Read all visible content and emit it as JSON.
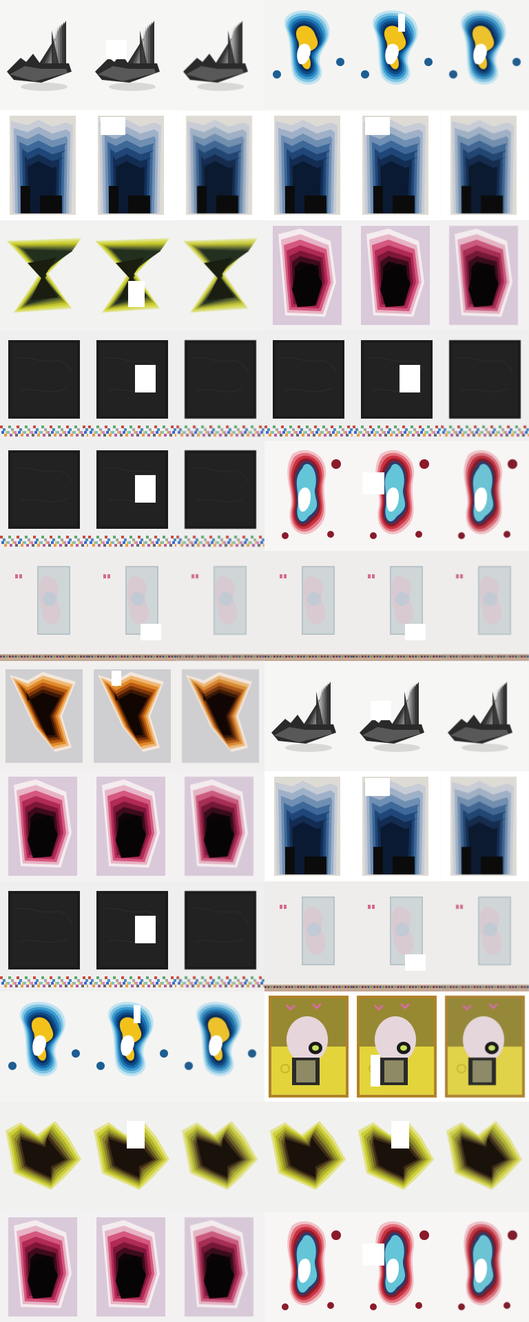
{
  "grid": {
    "columns": 6,
    "rows": 12,
    "cells": [
      {
        "art": "sail",
        "variant": "original"
      },
      {
        "art": "sail",
        "variant": "masked",
        "mask": "m1"
      },
      {
        "art": "sail",
        "variant": "reconstruction"
      },
      {
        "art": "blue-blob",
        "variant": "original"
      },
      {
        "art": "blue-blob",
        "variant": "masked",
        "mask": "m2"
      },
      {
        "art": "blue-blob",
        "variant": "reconstruction"
      },
      {
        "art": "blue-stair",
        "variant": "original"
      },
      {
        "art": "blue-stair",
        "variant": "masked",
        "mask": "m3"
      },
      {
        "art": "blue-stair",
        "variant": "reconstruction"
      },
      {
        "art": "blue-stair",
        "variant": "original"
      },
      {
        "art": "blue-stair",
        "variant": "masked",
        "mask": "m3"
      },
      {
        "art": "blue-stair",
        "variant": "reconstruction"
      },
      {
        "art": "yellow-bowtie",
        "variant": "original"
      },
      {
        "art": "yellow-bowtie",
        "variant": "masked",
        "mask": "m4"
      },
      {
        "art": "yellow-bowtie",
        "variant": "reconstruction"
      },
      {
        "art": "pink-layered",
        "variant": "original"
      },
      {
        "art": "pink-layered",
        "variant": "masked",
        "mask": "m5"
      },
      {
        "art": "pink-layered",
        "variant": "reconstruction"
      },
      {
        "art": "black-square",
        "variant": "original"
      },
      {
        "art": "black-square",
        "variant": "masked",
        "mask": "m6"
      },
      {
        "art": "black-square",
        "variant": "reconstruction"
      },
      {
        "art": "black-square",
        "variant": "original"
      },
      {
        "art": "black-square",
        "variant": "masked",
        "mask": "m6"
      },
      {
        "art": "black-square",
        "variant": "reconstruction"
      },
      {
        "art": "black-square",
        "variant": "original"
      },
      {
        "art": "black-square",
        "variant": "masked",
        "mask": "m6"
      },
      {
        "art": "black-square",
        "variant": "reconstruction"
      },
      {
        "art": "red-blob",
        "variant": "original"
      },
      {
        "art": "red-blob",
        "variant": "masked",
        "mask": "m7"
      },
      {
        "art": "red-blob",
        "variant": "reconstruction"
      },
      {
        "art": "gallery-wall",
        "variant": "original"
      },
      {
        "art": "gallery-wall",
        "variant": "masked",
        "mask": "m8"
      },
      {
        "art": "gallery-wall",
        "variant": "reconstruction"
      },
      {
        "art": "gallery-wall",
        "variant": "original"
      },
      {
        "art": "gallery-wall",
        "variant": "masked",
        "mask": "m8"
      },
      {
        "art": "gallery-wall",
        "variant": "reconstruction"
      },
      {
        "art": "orange-layered",
        "variant": "original"
      },
      {
        "art": "orange-layered",
        "variant": "masked",
        "mask": "m9"
      },
      {
        "art": "orange-layered",
        "variant": "reconstruction"
      },
      {
        "art": "sail",
        "variant": "original"
      },
      {
        "art": "sail",
        "variant": "masked",
        "mask": "m1"
      },
      {
        "art": "sail",
        "variant": "reconstruction"
      },
      {
        "art": "pink-layered",
        "variant": "original"
      },
      {
        "art": "pink-layered",
        "variant": "masked",
        "mask": "m10"
      },
      {
        "art": "pink-layered",
        "variant": "reconstruction"
      },
      {
        "art": "blue-stair",
        "variant": "original"
      },
      {
        "art": "blue-stair",
        "variant": "masked",
        "mask": "m3"
      },
      {
        "art": "blue-stair",
        "variant": "reconstruction"
      },
      {
        "art": "black-square",
        "variant": "original"
      },
      {
        "art": "black-square",
        "variant": "masked",
        "mask": "m6"
      },
      {
        "art": "black-square",
        "variant": "reconstruction"
      },
      {
        "art": "gallery-wall",
        "variant": "original"
      },
      {
        "art": "gallery-wall",
        "variant": "masked",
        "mask": "m8"
      },
      {
        "art": "gallery-wall",
        "variant": "reconstruction"
      },
      {
        "art": "blue-blob",
        "variant": "original"
      },
      {
        "art": "blue-blob",
        "variant": "masked",
        "mask": "m2"
      },
      {
        "art": "blue-blob",
        "variant": "reconstruction"
      },
      {
        "art": "skull-poster",
        "variant": "original"
      },
      {
        "art": "skull-poster",
        "variant": "masked",
        "mask": "m11"
      },
      {
        "art": "skull-poster",
        "variant": "reconstruction"
      },
      {
        "art": "yellow-chunk",
        "variant": "original"
      },
      {
        "art": "yellow-chunk",
        "variant": "masked",
        "mask": "m12"
      },
      {
        "art": "yellow-chunk",
        "variant": "reconstruction"
      },
      {
        "art": "yellow-chunk",
        "variant": "original"
      },
      {
        "art": "yellow-chunk",
        "variant": "masked",
        "mask": "m12"
      },
      {
        "art": "yellow-chunk",
        "variant": "reconstruction"
      },
      {
        "art": "pink-layered",
        "variant": "original"
      },
      {
        "art": "pink-layered",
        "variant": "masked",
        "mask": "m10"
      },
      {
        "art": "pink-layered",
        "variant": "reconstruction"
      },
      {
        "art": "red-blob",
        "variant": "original"
      },
      {
        "art": "red-blob",
        "variant": "masked",
        "mask": "m7"
      },
      {
        "art": "red-blob",
        "variant": "reconstruction"
      }
    ]
  },
  "colors": {
    "background": "#ffffff",
    "mask": "#ffffff",
    "wall": "#efeeec"
  }
}
